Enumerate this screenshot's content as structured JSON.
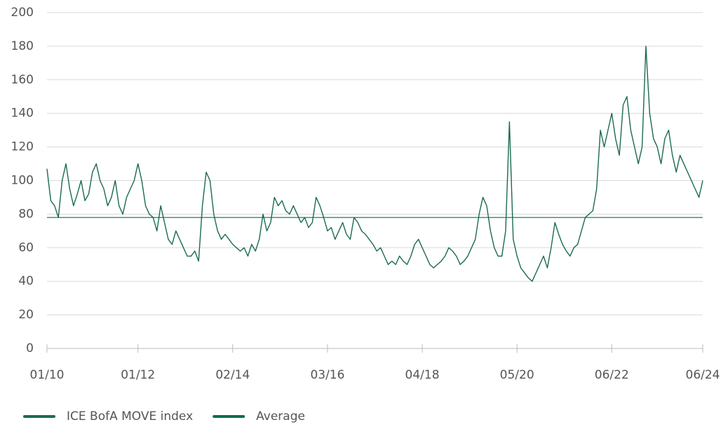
{
  "chart_data": {
    "type": "line",
    "categories": [
      "01/10",
      null,
      null,
      null,
      null,
      null,
      null,
      null,
      null,
      null,
      null,
      null,
      null,
      null,
      null,
      null,
      null,
      null,
      null,
      null,
      null,
      null,
      null,
      null,
      "01/12",
      null,
      null,
      null,
      null,
      null,
      null,
      null,
      null,
      null,
      null,
      null,
      null,
      null,
      null,
      null,
      null,
      null,
      null,
      null,
      null,
      null,
      null,
      null,
      null,
      "02/14",
      null,
      null,
      null,
      null,
      null,
      null,
      null,
      null,
      null,
      null,
      null,
      null,
      null,
      null,
      null,
      null,
      null,
      null,
      null,
      null,
      null,
      null,
      null,
      null,
      "03/16",
      null,
      null,
      null,
      null,
      null,
      null,
      null,
      null,
      null,
      null,
      null,
      null,
      null,
      null,
      null,
      null,
      null,
      null,
      null,
      null,
      null,
      null,
      null,
      null,
      "04/18",
      null,
      null,
      null,
      null,
      null,
      null,
      null,
      null,
      null,
      null,
      null,
      null,
      null,
      null,
      null,
      null,
      null,
      null,
      null,
      null,
      null,
      null,
      null,
      null,
      "05/20",
      null,
      null,
      null,
      null,
      null,
      null,
      null,
      null,
      null,
      null,
      null,
      null,
      null,
      null,
      null,
      null,
      null,
      null,
      null,
      null,
      null,
      null,
      null,
      null,
      "06/22",
      null,
      null,
      null,
      null,
      null,
      null,
      null,
      null,
      null,
      null,
      null,
      null,
      null,
      null,
      null,
      null,
      null,
      null,
      null,
      null,
      null,
      null,
      null,
      "06/24"
    ],
    "series": [
      {
        "name": "ICE BofA MOVE index",
        "color": "#1b6b50",
        "values": [
          107,
          88,
          85,
          78,
          100,
          110,
          95,
          85,
          92,
          100,
          88,
          92,
          105,
          110,
          100,
          95,
          85,
          90,
          100,
          85,
          80,
          90,
          95,
          100,
          110,
          100,
          85,
          80,
          78,
          70,
          85,
          75,
          65,
          62,
          70,
          65,
          60,
          55,
          55,
          58,
          52,
          85,
          105,
          100,
          80,
          70,
          65,
          68,
          65,
          62,
          60,
          58,
          60,
          55,
          62,
          58,
          65,
          80,
          70,
          75,
          90,
          85,
          88,
          82,
          80,
          85,
          80,
          75,
          78,
          72,
          75,
          90,
          85,
          78,
          70,
          72,
          65,
          70,
          75,
          68,
          65,
          78,
          75,
          70,
          68,
          65,
          62,
          58,
          60,
          55,
          50,
          52,
          50,
          55,
          52,
          50,
          55,
          62,
          65,
          60,
          55,
          50,
          48,
          50,
          52,
          55,
          60,
          58,
          55,
          50,
          52,
          55,
          60,
          65,
          80,
          90,
          85,
          70,
          60,
          55,
          55,
          70,
          135,
          65,
          55,
          48,
          45,
          42,
          40,
          45,
          50,
          55,
          48,
          60,
          75,
          68,
          62,
          58,
          55,
          60,
          62,
          70,
          78,
          80,
          82,
          95,
          130,
          120,
          130,
          140,
          125,
          115,
          145,
          150,
          130,
          120,
          110,
          120,
          180,
          140,
          125,
          120,
          110,
          125,
          130,
          115,
          105,
          115,
          110,
          105,
          100,
          95,
          90,
          100
        ]
      },
      {
        "name": "Average",
        "color": "#0b6e4f",
        "values": [
          78,
          78,
          78,
          78,
          78,
          78,
          78,
          78,
          78,
          78,
          78,
          78,
          78,
          78,
          78,
          78,
          78,
          78,
          78,
          78,
          78,
          78,
          78,
          78,
          78,
          78,
          78,
          78,
          78,
          78,
          78,
          78,
          78,
          78,
          78,
          78,
          78,
          78,
          78,
          78,
          78,
          78,
          78,
          78,
          78,
          78,
          78,
          78,
          78,
          78,
          78,
          78,
          78,
          78,
          78,
          78,
          78,
          78,
          78,
          78,
          78,
          78,
          78,
          78,
          78,
          78,
          78,
          78,
          78,
          78,
          78,
          78,
          78,
          78,
          78,
          78,
          78,
          78,
          78,
          78,
          78,
          78,
          78,
          78,
          78,
          78,
          78,
          78,
          78,
          78,
          78,
          78,
          78,
          78,
          78,
          78,
          78,
          78,
          78,
          78,
          78,
          78,
          78,
          78,
          78,
          78,
          78,
          78,
          78,
          78,
          78,
          78,
          78,
          78,
          78,
          78,
          78,
          78,
          78,
          78,
          78,
          78,
          78,
          78,
          78,
          78,
          78,
          78,
          78,
          78,
          78,
          78,
          78,
          78,
          78,
          78,
          78,
          78,
          78,
          78,
          78,
          78,
          78,
          78,
          78,
          78,
          78,
          78,
          78,
          78,
          78,
          78,
          78,
          78,
          78,
          78,
          78,
          78,
          78,
          78,
          78,
          78,
          78,
          78,
          78,
          78,
          78,
          78,
          78,
          78,
          78,
          78,
          78,
          78
        ]
      }
    ],
    "ylim": [
      0,
      200
    ],
    "yticks": [
      0,
      20,
      40,
      60,
      80,
      100,
      120,
      140,
      160,
      180,
      200
    ],
    "grid": true,
    "legend": "bottom-left"
  }
}
